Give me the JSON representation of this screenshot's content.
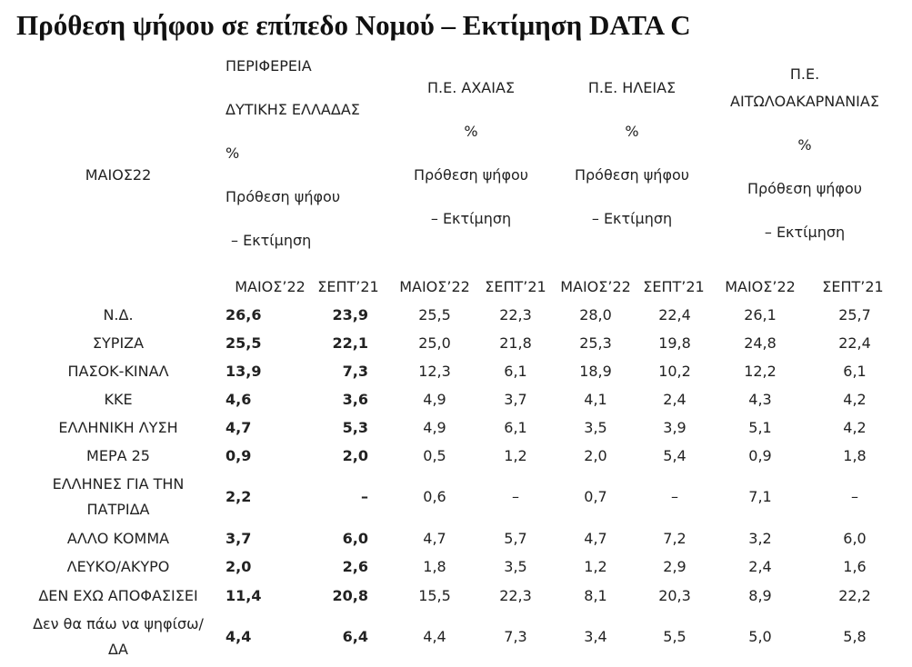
{
  "title": "Πρόθεση ψήφου σε επίπεδο Νομού – Εκτίμηση DATA C",
  "corner": "ΜΑΙΟΣ22",
  "groups": [
    {
      "lines": [
        "ΠΕΡΙΦΕΡΕΙΑ",
        "ΔΥΤΙΚΗΣ ΕΛΛΑΔΑΣ",
        "%",
        "Πρόθεση ψήφου",
        "– Εκτίμηση"
      ]
    },
    {
      "lines": [
        "Π.Ε. ΑΧΑΙΑΣ",
        "%",
        "Πρόθεση ψήφου",
        "– Εκτίμηση"
      ]
    },
    {
      "lines": [
        "Π.Ε. ΗΛΕΙΑΣ",
        "%",
        "Πρόθεση ψήφου",
        "– Εκτίμηση"
      ]
    },
    {
      "lines": [
        "Π.Ε.",
        "ΑΙΤΩΛΟΑΚΑΡΝΑΝΙΑΣ",
        "%",
        "Πρόθεση ψήφου",
        "– Εκτίμηση"
      ]
    }
  ],
  "subheaders": [
    "ΜΑΙΟΣ’22",
    "ΣΕΠΤ’21",
    "ΜΑΙΟΣ’22",
    "ΣΕΠΤ’21",
    "ΜΑΙΟΣ’22",
    "ΣΕΠΤ’21",
    "ΜΑΙΟΣ’22",
    "ΣΕΠΤ’21"
  ],
  "rows": [
    {
      "label": [
        "Ν.Δ."
      ],
      "cells": [
        "26,6",
        "23,9",
        "25,5",
        "22,3",
        "28,0",
        "22,4",
        "26,1",
        "25,7"
      ]
    },
    {
      "label": [
        "ΣΥΡΙΖΑ"
      ],
      "cells": [
        "25,5",
        "22,1",
        "25,0",
        "21,8",
        "25,3",
        "19,8",
        "24,8",
        "22,4"
      ]
    },
    {
      "label": [
        "ΠΑΣΟΚ-ΚΙΝΑΛ"
      ],
      "cells": [
        "13,9",
        "7,3",
        "12,3",
        "6,1",
        "18,9",
        "10,2",
        "12,2",
        "6,1"
      ]
    },
    {
      "label": [
        "ΚΚΕ"
      ],
      "cells": [
        "4,6",
        "3,6",
        "4,9",
        "3,7",
        "4,1",
        "2,4",
        "4,3",
        "4,2"
      ]
    },
    {
      "label": [
        "ΕΛΛΗΝΙΚΗ ΛΥΣΗ"
      ],
      "cells": [
        "4,7",
        "5,3",
        "4,9",
        "6,1",
        "3,5",
        "3,9",
        "5,1",
        "4,2"
      ]
    },
    {
      "label": [
        "ΜΕΡΑ 25"
      ],
      "cells": [
        "0,9",
        "2,0",
        "0,5",
        "1,2",
        "2,0",
        "5,4",
        "0,9",
        "1,8"
      ]
    },
    {
      "label": [
        "ΕΛΛΗΝΕΣ ΓΙΑ ΤΗΝ",
        "ΠΑΤΡΙΔΑ"
      ],
      "cells": [
        "2,2",
        "–",
        "0,6",
        "–",
        "0,7",
        "–",
        "7,1",
        "–"
      ]
    },
    {
      "label": [
        "ΑΛΛΟ ΚΟΜΜΑ"
      ],
      "cells": [
        "3,7",
        "6,0",
        "4,7",
        "5,7",
        "4,7",
        "7,2",
        "3,2",
        "6,0"
      ]
    },
    {
      "label": [
        "ΛΕΥΚΟ/ΑΚΥΡΟ"
      ],
      "cells": [
        "2,0",
        "2,6",
        "1,8",
        "3,5",
        "1,2",
        "2,9",
        "2,4",
        "1,6"
      ]
    },
    {
      "label": [
        "ΔΕΝ ΕΧΩ ΑΠΟΦΑΣΙΣΕΙ"
      ],
      "cells": [
        "11,4",
        "20,8",
        "15,5",
        "22,3",
        "8,1",
        "20,3",
        "8,9",
        "22,2"
      ]
    },
    {
      "label": [
        "Δεν θα πάω να ψηφίσω/",
        "ΔΑ"
      ],
      "cells": [
        "4,4",
        "6,4",
        "4,4",
        "7,3",
        "3,4",
        "5,5",
        "5,0",
        "5,8"
      ]
    }
  ]
}
